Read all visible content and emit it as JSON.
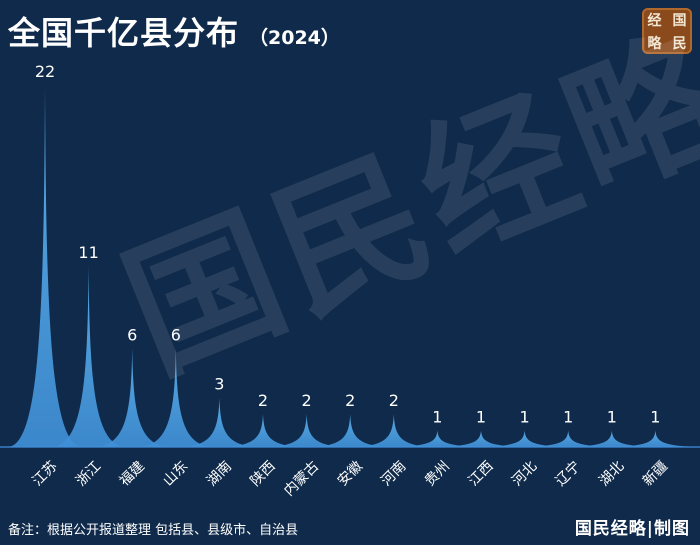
{
  "header": {
    "title": "全国千亿县分布",
    "year": "（2024）"
  },
  "logo": {
    "chars": [
      "经",
      "国",
      "略",
      "民"
    ]
  },
  "watermark": "国民经略",
  "chart_data": {
    "type": "bar",
    "title": "全国千亿县分布",
    "subtitle": "（2024）",
    "categories": [
      "江苏",
      "浙江",
      "福建",
      "山东",
      "湖南",
      "陕西",
      "内蒙古",
      "安徽",
      "河南",
      "贵州",
      "江西",
      "河北",
      "辽宁",
      "湖北",
      "新疆"
    ],
    "values": [
      22,
      11,
      6,
      6,
      3,
      2,
      2,
      2,
      2,
      1,
      1,
      1,
      1,
      1,
      1
    ],
    "ylim": [
      0,
      22
    ],
    "grid": false,
    "bar_color": "#4aa3e6"
  },
  "footer": {
    "note": "备注：根据公开报道整理 包括县、县级市、自治县",
    "credit": "国民经略|制图"
  }
}
